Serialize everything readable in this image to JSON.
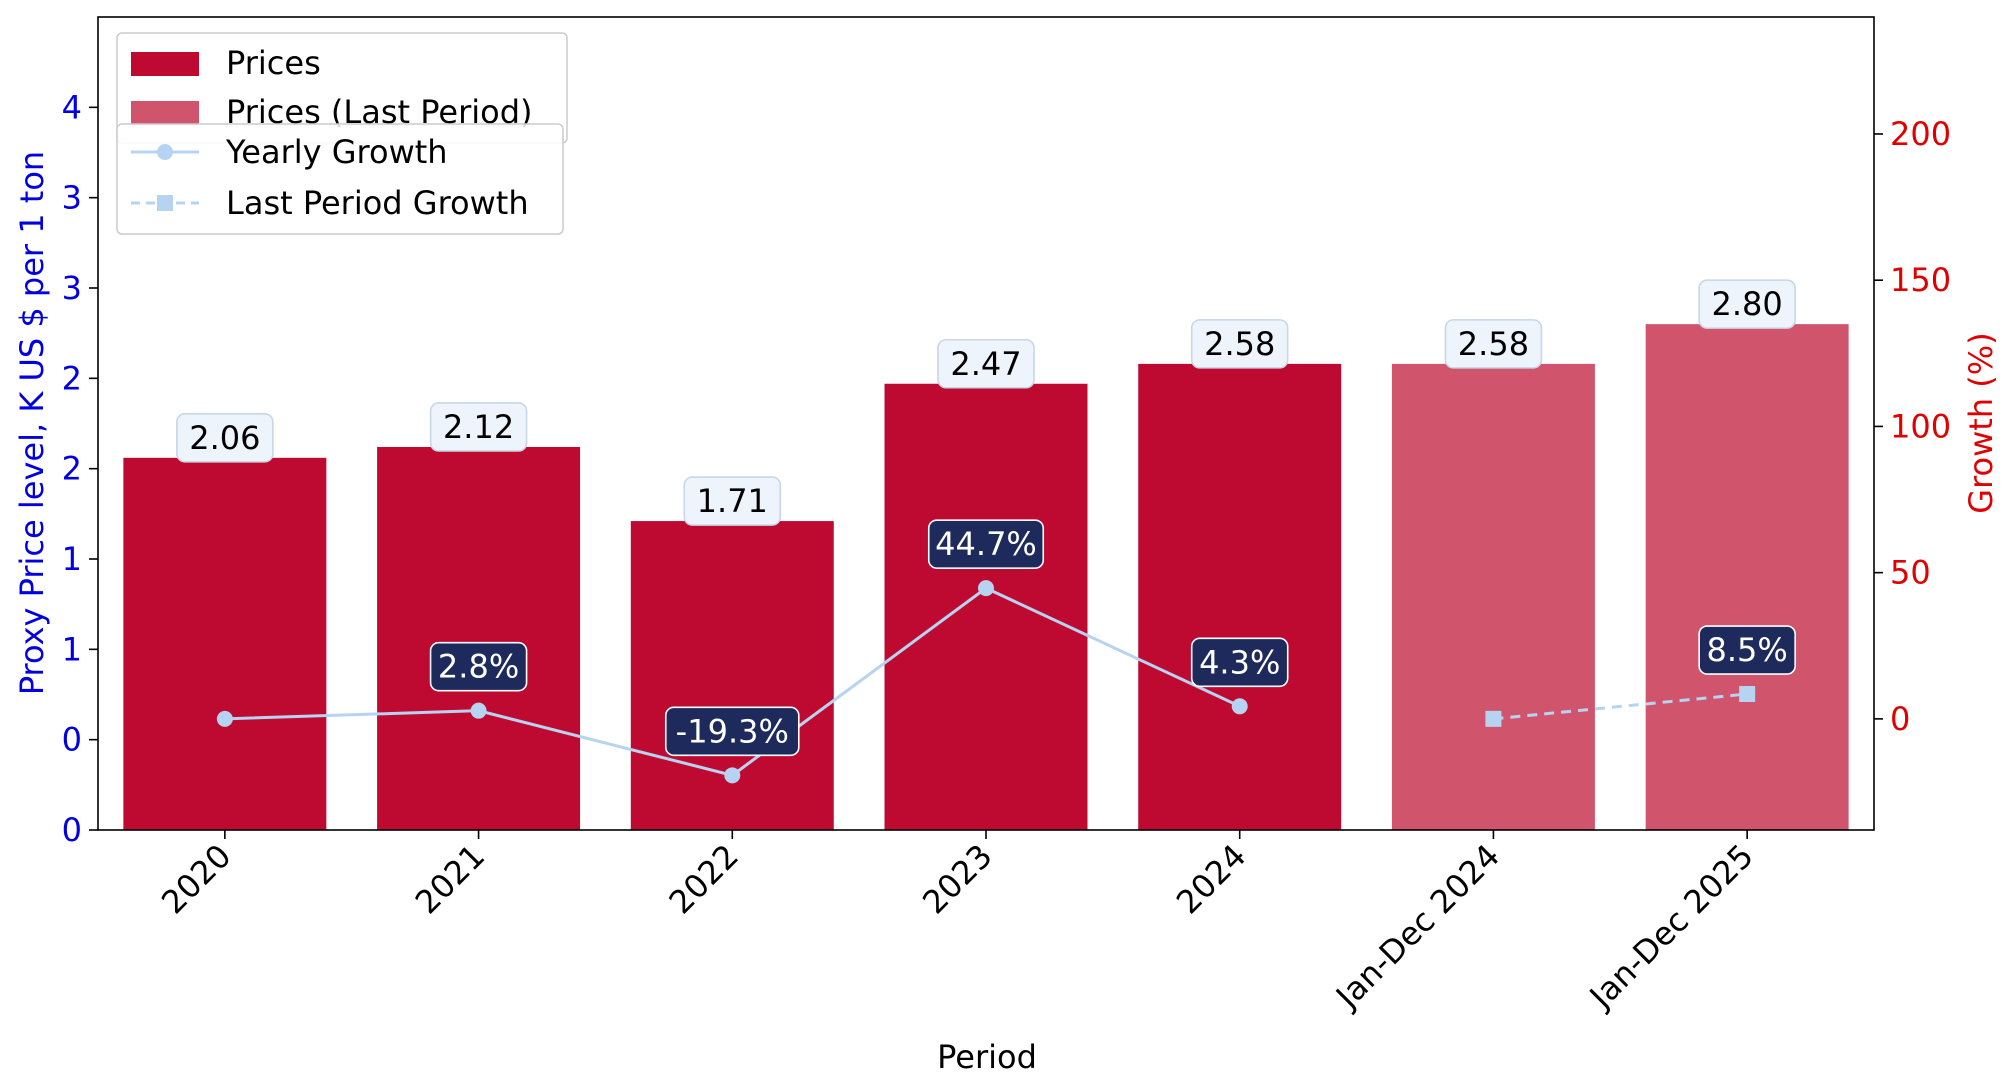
{
  "chart_data": {
    "type": "bar",
    "xlabel": "Period",
    "ylabel": "Proxy Price level, K US $ per 1 ton",
    "y2label": "Growth (%)",
    "categories": [
      "2020",
      "2021",
      "2022",
      "2023",
      "2024",
      "Jan-Dec 2024",
      "Jan-Dec 2025"
    ],
    "y_left": {
      "range": [
        0,
        4.5
      ],
      "ticks": [
        0,
        0.5,
        1.0,
        1.5,
        2.0,
        2.5,
        3.0,
        3.5,
        4.0
      ],
      "tick_labels": [
        "0",
        "0",
        "1",
        "1",
        "2",
        "2",
        "3",
        "3",
        "4"
      ]
    },
    "y_right": {
      "range": [
        -38,
        240
      ],
      "ticks": [
        0,
        50,
        100,
        150,
        200
      ],
      "tick_labels": [
        "0",
        "50",
        "100",
        "150",
        "200"
      ]
    },
    "bars": {
      "prices": {
        "name": "Prices",
        "color": "#be0a30",
        "categories": [
          "2020",
          "2021",
          "2022",
          "2023",
          "2024"
        ],
        "values": [
          2.06,
          2.12,
          1.71,
          2.47,
          2.58
        ],
        "labels": [
          "2.06",
          "2.12",
          "1.71",
          "2.47",
          "2.58"
        ]
      },
      "last_period": {
        "name": "Prices (Last Period)",
        "color": "#d0546b",
        "categories": [
          "Jan-Dec 2024",
          "Jan-Dec 2025"
        ],
        "values": [
          2.58,
          2.8
        ],
        "labels": [
          "2.58",
          "2.80"
        ]
      }
    },
    "lines": {
      "yearly_growth": {
        "name": "Yearly Growth",
        "color": "#b7d3f2",
        "marker": "circle",
        "style": "solid",
        "categories": [
          "2020",
          "2021",
          "2022",
          "2023",
          "2024"
        ],
        "values": [
          0,
          2.8,
          -19.3,
          44.7,
          4.3
        ],
        "labels": [
          "",
          "2.8%",
          "-19.3%",
          "44.7%",
          "4.3%"
        ]
      },
      "last_period_growth": {
        "name": "Last Period Growth",
        "color": "#b7d3f2",
        "marker": "square",
        "style": "dashed",
        "categories": [
          "Jan-Dec 2024",
          "Jan-Dec 2025"
        ],
        "values": [
          0,
          8.5
        ],
        "labels": [
          "",
          "8.5%"
        ]
      }
    },
    "legends": {
      "bars": [
        "Prices",
        "Prices (Last Period)"
      ],
      "lines": [
        "Yearly Growth",
        "Last Period Growth"
      ],
      "placement": "top-left"
    },
    "grid": false,
    "colors": {
      "left_axis": "#0000e0",
      "right_axis": "#e00000",
      "value_box_fill": "#eef4fb",
      "growth_box_fill": "#1f2a5c",
      "growth_text": "#ffffff"
    }
  }
}
